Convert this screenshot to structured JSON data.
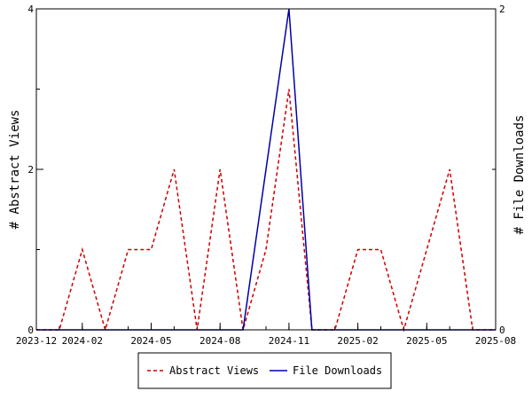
{
  "chart_data": {
    "type": "line",
    "xlabel": "",
    "ylabel_left": "# Abstract Views",
    "ylabel_right": "# File Downloads",
    "x_ticks": [
      "2023-12",
      "2024-02",
      "2024-05",
      "2024-08",
      "2024-11",
      "2025-02",
      "2025-05",
      "2025-08"
    ],
    "y_left_ticks": [
      "0",
      "2",
      "4"
    ],
    "y_right_ticks": [
      "0",
      "1",
      "2"
    ],
    "ylim_left": [
      0,
      4
    ],
    "ylim_right": [
      0,
      2
    ],
    "legend_position": "bottom",
    "x": [
      "2023-12",
      "2024-01",
      "2024-02",
      "2024-03",
      "2024-04",
      "2024-05",
      "2024-06",
      "2024-07",
      "2024-08",
      "2024-09",
      "2024-10",
      "2024-11",
      "2024-12",
      "2025-01",
      "2025-02",
      "2025-03",
      "2025-04",
      "2025-05",
      "2025-06",
      "2025-07",
      "2025-08"
    ],
    "series": [
      {
        "name": "Abstract Views",
        "axis": "left",
        "color": "#cc0000",
        "style": "dashed",
        "values": [
          0,
          0,
          1,
          0,
          1,
          1,
          2,
          0,
          2,
          0,
          1,
          3,
          0,
          0,
          1,
          1,
          0,
          1,
          2,
          0,
          0
        ]
      },
      {
        "name": "File Downloads",
        "axis": "right",
        "color": "#0000aa",
        "style": "solid",
        "values": [
          0,
          0,
          0,
          0,
          0,
          0,
          0,
          0,
          0,
          0,
          1,
          2,
          0,
          0,
          0,
          0,
          0,
          0,
          0,
          0,
          0
        ]
      }
    ]
  }
}
